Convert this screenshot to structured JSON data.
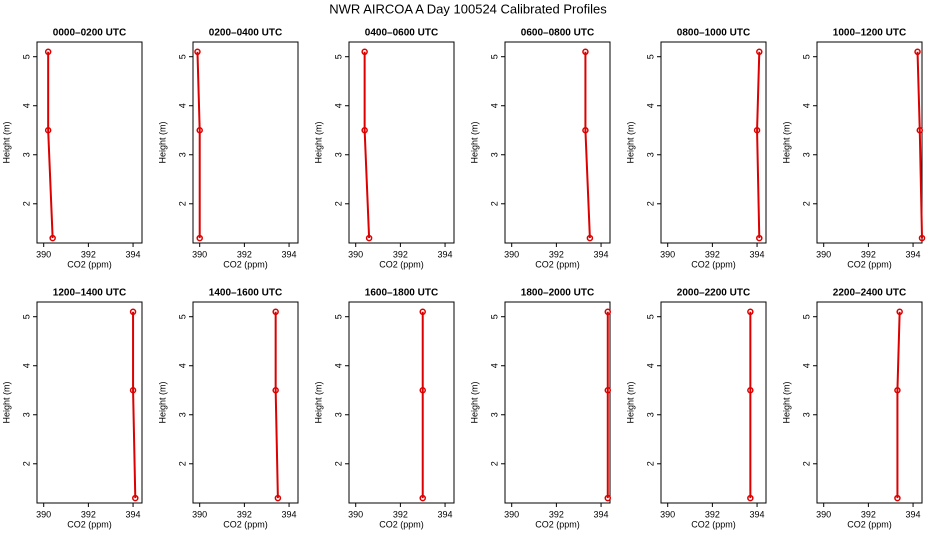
{
  "title": "NWR AIRCOA A  Day 100524  Calibrated Profiles",
  "chart_data": [
    {
      "type": "line",
      "title": "0000–0200 UTC",
      "xlabel": "CO2 (ppm)",
      "ylabel": "Height (m)",
      "x": [
        390.2,
        390.2,
        390.4
      ],
      "values": [
        5.1,
        3.5,
        1.3
      ],
      "color": "#dd0000",
      "xlim": [
        389.7,
        394.4
      ],
      "ylim": [
        1.2,
        5.3
      ],
      "xticks": [
        390,
        392,
        394
      ],
      "yticks": [
        2,
        3,
        4,
        5
      ]
    },
    {
      "type": "line",
      "title": "0200–0400 UTC",
      "xlabel": "CO2 (ppm)",
      "ylabel": "Height (m)",
      "x": [
        389.9,
        390.0,
        390.0
      ],
      "values": [
        5.1,
        3.5,
        1.3
      ],
      "color": "#dd0000",
      "xlim": [
        389.7,
        394.4
      ],
      "ylim": [
        1.2,
        5.3
      ],
      "xticks": [
        390,
        392,
        394
      ],
      "yticks": [
        2,
        3,
        4,
        5
      ]
    },
    {
      "type": "line",
      "title": "0400–0600 UTC",
      "xlabel": "CO2 (ppm)",
      "ylabel": "Height (m)",
      "x": [
        390.4,
        390.4,
        390.6
      ],
      "values": [
        5.1,
        3.5,
        1.3
      ],
      "color": "#dd0000",
      "xlim": [
        389.7,
        394.4
      ],
      "ylim": [
        1.2,
        5.3
      ],
      "xticks": [
        390,
        392,
        394
      ],
      "yticks": [
        2,
        3,
        4,
        5
      ]
    },
    {
      "type": "line",
      "title": "0600–0800 UTC",
      "xlabel": "CO2 (ppm)",
      "ylabel": "Height (m)",
      "x": [
        393.3,
        393.3,
        393.5
      ],
      "values": [
        5.1,
        3.5,
        1.3
      ],
      "color": "#dd0000",
      "xlim": [
        389.7,
        394.4
      ],
      "ylim": [
        1.2,
        5.3
      ],
      "xticks": [
        390,
        392,
        394
      ],
      "yticks": [
        2,
        3,
        4,
        5
      ]
    },
    {
      "type": "line",
      "title": "0800–1000 UTC",
      "xlabel": "CO2 (ppm)",
      "ylabel": "Height (m)",
      "x": [
        394.1,
        394.0,
        394.1
      ],
      "values": [
        5.1,
        3.5,
        1.3
      ],
      "color": "#dd0000",
      "xlim": [
        389.7,
        394.4
      ],
      "ylim": [
        1.2,
        5.3
      ],
      "xticks": [
        390,
        392,
        394
      ],
      "yticks": [
        2,
        3,
        4,
        5
      ]
    },
    {
      "type": "line",
      "title": "1000–1200 UTC",
      "xlabel": "CO2 (ppm)",
      "ylabel": "Height (m)",
      "x": [
        394.2,
        394.3,
        394.4
      ],
      "values": [
        5.1,
        3.5,
        1.3
      ],
      "color": "#dd0000",
      "xlim": [
        389.7,
        394.4
      ],
      "ylim": [
        1.2,
        5.3
      ],
      "xticks": [
        390,
        392,
        394
      ],
      "yticks": [
        2,
        3,
        4,
        5
      ]
    },
    {
      "type": "line",
      "title": "1200–1400 UTC",
      "xlabel": "CO2 (ppm)",
      "ylabel": "Height (m)",
      "x": [
        394.0,
        394.0,
        394.1
      ],
      "values": [
        5.1,
        3.5,
        1.3
      ],
      "color": "#dd0000",
      "xlim": [
        389.7,
        394.4
      ],
      "ylim": [
        1.2,
        5.3
      ],
      "xticks": [
        390,
        392,
        394
      ],
      "yticks": [
        2,
        3,
        4,
        5
      ]
    },
    {
      "type": "line",
      "title": "1400–1600 UTC",
      "xlabel": "CO2 (ppm)",
      "ylabel": "Height (m)",
      "x": [
        393.4,
        393.4,
        393.5
      ],
      "values": [
        5.1,
        3.5,
        1.3
      ],
      "color": "#dd0000",
      "xlim": [
        389.7,
        394.4
      ],
      "ylim": [
        1.2,
        5.3
      ],
      "xticks": [
        390,
        392,
        394
      ],
      "yticks": [
        2,
        3,
        4,
        5
      ]
    },
    {
      "type": "line",
      "title": "1600–1800 UTC",
      "xlabel": "CO2 (ppm)",
      "ylabel": "Height (m)",
      "x": [
        393.0,
        393.0,
        393.0
      ],
      "values": [
        5.1,
        3.5,
        1.3
      ],
      "color": "#dd0000",
      "xlim": [
        389.7,
        394.4
      ],
      "ylim": [
        1.2,
        5.3
      ],
      "xticks": [
        390,
        392,
        394
      ],
      "yticks": [
        2,
        3,
        4,
        5
      ]
    },
    {
      "type": "line",
      "title": "1800–2000 UTC",
      "xlabel": "CO2 (ppm)",
      "ylabel": "Height (m)",
      "x": [
        394.3,
        394.3,
        394.3
      ],
      "values": [
        5.1,
        3.5,
        1.3
      ],
      "color": "#dd0000",
      "xlim": [
        389.7,
        394.4
      ],
      "ylim": [
        1.2,
        5.3
      ],
      "xticks": [
        390,
        392,
        394
      ],
      "yticks": [
        2,
        3,
        4,
        5
      ]
    },
    {
      "type": "line",
      "title": "2000–2200 UTC",
      "xlabel": "CO2 (ppm)",
      "ylabel": "Height (m)",
      "x": [
        393.7,
        393.7,
        393.7
      ],
      "values": [
        5.1,
        3.5,
        1.3
      ],
      "color": "#dd0000",
      "xlim": [
        389.7,
        394.4
      ],
      "ylim": [
        1.2,
        5.3
      ],
      "xticks": [
        390,
        392,
        394
      ],
      "yticks": [
        2,
        3,
        4,
        5
      ]
    },
    {
      "type": "line",
      "title": "2200–2400 UTC",
      "xlabel": "CO2 (ppm)",
      "ylabel": "Height (m)",
      "x": [
        393.4,
        393.3,
        393.3
      ],
      "values": [
        5.1,
        3.5,
        1.3
      ],
      "color": "#dd0000",
      "xlim": [
        389.7,
        394.4
      ],
      "ylim": [
        1.2,
        5.3
      ],
      "xticks": [
        390,
        392,
        394
      ],
      "yticks": [
        2,
        3,
        4,
        5
      ]
    }
  ]
}
